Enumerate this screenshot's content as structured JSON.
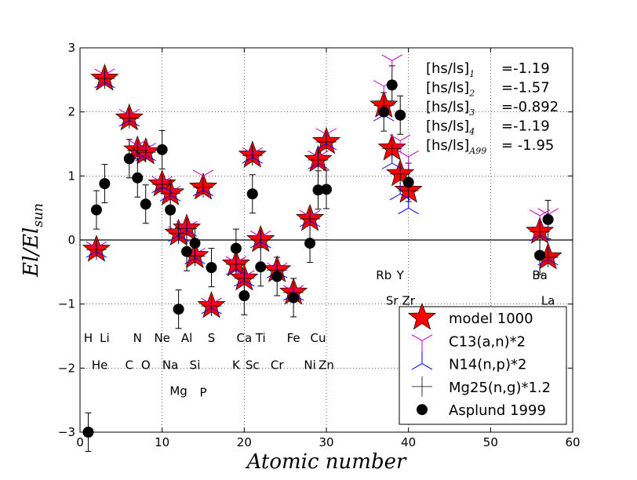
{
  "chart_data": {
    "type": "scatter",
    "xlabel": "Atomic number",
    "ylabel_main": "El/El",
    "ylabel_sub": "sun",
    "xlim": [
      0,
      60
    ],
    "ylim": [
      -3,
      3
    ],
    "xticks": [
      0,
      10,
      20,
      30,
      40,
      50,
      60
    ],
    "yticks": [
      -3,
      -2,
      -1,
      0,
      1,
      2,
      3
    ],
    "xtick_labels": [
      "0",
      "10",
      "20",
      "30",
      "40",
      "50",
      "60"
    ],
    "ytick_labels": [
      "−3",
      "−2",
      "−1",
      "0",
      "1",
      "2",
      "3"
    ],
    "grid": true,
    "hline_y": 0,
    "series": [
      {
        "name": "model 1000",
        "marker": "star",
        "color": "#ff0000",
        "points": [
          {
            "x": 2,
            "y": -0.15
          },
          {
            "x": 3,
            "y": 2.52
          },
          {
            "x": 6,
            "y": 1.9
          },
          {
            "x": 7,
            "y": 1.4
          },
          {
            "x": 8,
            "y": 1.37
          },
          {
            "x": 10,
            "y": 0.87
          },
          {
            "x": 11,
            "y": 0.73
          },
          {
            "x": 12,
            "y": 0.1
          },
          {
            "x": 13,
            "y": 0.18
          },
          {
            "x": 14,
            "y": -0.25
          },
          {
            "x": 15,
            "y": 0.82
          },
          {
            "x": 16,
            "y": -1.03
          },
          {
            "x": 19,
            "y": -0.38
          },
          {
            "x": 20,
            "y": -0.6
          },
          {
            "x": 21,
            "y": 1.32
          },
          {
            "x": 22,
            "y": 0.0
          },
          {
            "x": 24,
            "y": -0.47
          },
          {
            "x": 26,
            "y": -0.82
          },
          {
            "x": 28,
            "y": 0.33
          },
          {
            "x": 29,
            "y": 1.25
          },
          {
            "x": 30,
            "y": 1.53
          },
          {
            "x": 37,
            "y": 2.1
          },
          {
            "x": 38,
            "y": 1.43
          },
          {
            "x": 39,
            "y": 1.03
          },
          {
            "x": 40,
            "y": 0.77
          },
          {
            "x": 56,
            "y": 0.13
          },
          {
            "x": 57,
            "y": -0.27
          }
        ]
      },
      {
        "name": "C13(a,n)*2",
        "marker": "tri_down",
        "color": "#bf00bf",
        "points": [
          {
            "x": 2,
            "y": -0.12
          },
          {
            "x": 3,
            "y": 2.58
          },
          {
            "x": 6,
            "y": 1.95
          },
          {
            "x": 7,
            "y": 1.48
          },
          {
            "x": 8,
            "y": 1.42
          },
          {
            "x": 10,
            "y": 0.9
          },
          {
            "x": 11,
            "y": 0.75
          },
          {
            "x": 12,
            "y": 0.12
          },
          {
            "x": 13,
            "y": 0.2
          },
          {
            "x": 14,
            "y": -0.22
          },
          {
            "x": 15,
            "y": 1.0
          },
          {
            "x": 16,
            "y": -1.0
          },
          {
            "x": 19,
            "y": -0.35
          },
          {
            "x": 20,
            "y": -0.57
          },
          {
            "x": 21,
            "y": 1.35
          },
          {
            "x": 22,
            "y": 0.05
          },
          {
            "x": 24,
            "y": -0.45
          },
          {
            "x": 26,
            "y": -0.8
          },
          {
            "x": 28,
            "y": 0.37
          },
          {
            "x": 29,
            "y": 1.3
          },
          {
            "x": 30,
            "y": 1.65
          },
          {
            "x": 37,
            "y": 2.4
          },
          {
            "x": 38,
            "y": 2.8
          },
          {
            "x": 39,
            "y": 1.55
          },
          {
            "x": 40,
            "y": 1.3
          },
          {
            "x": 56,
            "y": 0.38
          },
          {
            "x": 57,
            "y": 0.4
          }
        ]
      },
      {
        "name": "N14(n,p)*2",
        "marker": "tri_up",
        "color": "#0000ff",
        "points": [
          {
            "x": 2,
            "y": -0.18
          },
          {
            "x": 3,
            "y": 2.47
          },
          {
            "x": 6,
            "y": 1.87
          },
          {
            "x": 7,
            "y": 1.35
          },
          {
            "x": 8,
            "y": 1.33
          },
          {
            "x": 10,
            "y": 0.83
          },
          {
            "x": 11,
            "y": 0.7
          },
          {
            "x": 12,
            "y": 0.07
          },
          {
            "x": 13,
            "y": 0.15
          },
          {
            "x": 14,
            "y": -0.28
          },
          {
            "x": 15,
            "y": 0.78
          },
          {
            "x": 16,
            "y": -1.06
          },
          {
            "x": 19,
            "y": -0.45
          },
          {
            "x": 20,
            "y": -0.63
          },
          {
            "x": 21,
            "y": 1.29
          },
          {
            "x": 22,
            "y": -0.03
          },
          {
            "x": 24,
            "y": -0.5
          },
          {
            "x": 26,
            "y": -0.85
          },
          {
            "x": 28,
            "y": 0.3
          },
          {
            "x": 29,
            "y": 1.2
          },
          {
            "x": 30,
            "y": 1.5
          },
          {
            "x": 37,
            "y": 1.95
          },
          {
            "x": 38,
            "y": 1.2
          },
          {
            "x": 39,
            "y": 0.72
          },
          {
            "x": 40,
            "y": 0.5
          },
          {
            "x": 56,
            "y": 0.08
          },
          {
            "x": 57,
            "y": -0.3
          }
        ]
      },
      {
        "name": "Mg25(n,g)*1.2",
        "marker": "plus",
        "color": "#000000",
        "points": [
          {
            "x": 2,
            "y": -0.15
          },
          {
            "x": 3,
            "y": 2.52
          },
          {
            "x": 6,
            "y": 1.9
          },
          {
            "x": 7,
            "y": 1.4
          },
          {
            "x": 8,
            "y": 1.37
          },
          {
            "x": 10,
            "y": 0.87
          },
          {
            "x": 11,
            "y": 0.73
          },
          {
            "x": 12,
            "y": 0.1
          },
          {
            "x": 13,
            "y": 0.18
          },
          {
            "x": 14,
            "y": -0.25
          },
          {
            "x": 15,
            "y": 0.82
          },
          {
            "x": 16,
            "y": -1.03
          },
          {
            "x": 19,
            "y": -0.38
          },
          {
            "x": 20,
            "y": -0.6
          },
          {
            "x": 21,
            "y": 1.32
          },
          {
            "x": 22,
            "y": 0.0
          },
          {
            "x": 24,
            "y": -0.47
          },
          {
            "x": 26,
            "y": -0.82
          },
          {
            "x": 28,
            "y": 0.33
          },
          {
            "x": 29,
            "y": 1.25
          },
          {
            "x": 30,
            "y": 1.53
          },
          {
            "x": 37,
            "y": 2.1
          },
          {
            "x": 38,
            "y": 1.43
          },
          {
            "x": 39,
            "y": 1.03
          },
          {
            "x": 40,
            "y": 0.77
          },
          {
            "x": 56,
            "y": 0.13
          },
          {
            "x": 57,
            "y": -0.27
          }
        ]
      },
      {
        "name": "Asplund 1999",
        "marker": "circle",
        "color": "#000000",
        "points": [
          {
            "x": 1,
            "y": -3.0,
            "err": 0.3
          },
          {
            "x": 2,
            "y": 0.47,
            "err": 0.3
          },
          {
            "x": 3,
            "y": 0.88,
            "err": 0.3
          },
          {
            "x": 6,
            "y": 1.27,
            "err": 0.3
          },
          {
            "x": 7,
            "y": 0.97,
            "err": 0.3
          },
          {
            "x": 8,
            "y": 0.56,
            "err": 0.3
          },
          {
            "x": 10,
            "y": 1.41,
            "err": 0.3
          },
          {
            "x": 11,
            "y": 0.47,
            "err": 0.3
          },
          {
            "x": 12,
            "y": -1.08,
            "err": 0.3
          },
          {
            "x": 13,
            "y": -0.18,
            "err": 0.3
          },
          {
            "x": 14,
            "y": -0.05,
            "err": 0.3
          },
          {
            "x": 16,
            "y": -0.43,
            "err": 0.3
          },
          {
            "x": 19,
            "y": -0.13,
            "err": 0.3
          },
          {
            "x": 20,
            "y": -0.87,
            "err": 0.3
          },
          {
            "x": 21,
            "y": 0.72,
            "err": 0.3
          },
          {
            "x": 22,
            "y": -0.42,
            "err": 0.3
          },
          {
            "x": 24,
            "y": -0.57,
            "err": 0.3
          },
          {
            "x": 26,
            "y": -0.9,
            "err": 0.3
          },
          {
            "x": 28,
            "y": -0.05,
            "err": 0.3
          },
          {
            "x": 29,
            "y": 0.78,
            "err": 0.3
          },
          {
            "x": 30,
            "y": 0.79,
            "err": 0.3
          },
          {
            "x": 37,
            "y": 2.0,
            "err": 0.3
          },
          {
            "x": 38,
            "y": 2.42,
            "err": 0.3
          },
          {
            "x": 39,
            "y": 1.95,
            "err": 0.3
          },
          {
            "x": 40,
            "y": 0.9,
            "err": 0.3
          },
          {
            "x": 56,
            "y": -0.24,
            "err": 0.3
          },
          {
            "x": 57,
            "y": 0.32,
            "err": 0.3
          }
        ]
      }
    ],
    "element_labels": [
      {
        "text": "H",
        "x": 1,
        "y": -1.53
      },
      {
        "text": "He",
        "x": 2.4,
        "y": -1.95
      },
      {
        "text": "Li",
        "x": 3,
        "y": -1.53
      },
      {
        "text": "C",
        "x": 6,
        "y": -1.95
      },
      {
        "text": "N",
        "x": 7,
        "y": -1.53
      },
      {
        "text": "O",
        "x": 8,
        "y": -1.95
      },
      {
        "text": "Ne",
        "x": 10,
        "y": -1.53
      },
      {
        "text": "Na",
        "x": 11,
        "y": -1.95
      },
      {
        "text": "Mg",
        "x": 12,
        "y": -2.36
      },
      {
        "text": "Al",
        "x": 13,
        "y": -1.53
      },
      {
        "text": "Si",
        "x": 14,
        "y": -1.95
      },
      {
        "text": "P",
        "x": 15,
        "y": -2.38
      },
      {
        "text": "S",
        "x": 16,
        "y": -1.53
      },
      {
        "text": "K",
        "x": 19,
        "y": -1.95
      },
      {
        "text": "Ca",
        "x": 20,
        "y": -1.53
      },
      {
        "text": "Sc",
        "x": 21,
        "y": -1.95
      },
      {
        "text": "Ti",
        "x": 22,
        "y": -1.53
      },
      {
        "text": "Cr",
        "x": 24,
        "y": -1.95
      },
      {
        "text": "Fe",
        "x": 26,
        "y": -1.53
      },
      {
        "text": "Ni",
        "x": 28,
        "y": -1.95
      },
      {
        "text": "Cu",
        "x": 29,
        "y": -1.53
      },
      {
        "text": "Zn",
        "x": 30,
        "y": -1.95
      },
      {
        "text": "Rb",
        "x": 37,
        "y": -0.55
      },
      {
        "text": "Y",
        "x": 39,
        "y": -0.55
      },
      {
        "text": "Sr",
        "x": 38,
        "y": -0.95
      },
      {
        "text": "Zr",
        "x": 40,
        "y": -0.95
      },
      {
        "text": "Ba",
        "x": 56,
        "y": -0.55
      },
      {
        "text": "La",
        "x": 57,
        "y": -0.95
      }
    ],
    "annotations": [
      {
        "base": "[hs/ls]",
        "sub": "1",
        "value": "=-1.19"
      },
      {
        "base": "[hs/ls]",
        "sub": "2",
        "value": "=-1.57"
      },
      {
        "base": "[hs/ls]",
        "sub": "3",
        "value": "=-0.892"
      },
      {
        "base": "[hs/ls]",
        "sub": "4",
        "value": "=-1.19"
      },
      {
        "base": "[hs/ls]",
        "sub": "A99",
        "value": "= -1.95"
      }
    ],
    "legend_location": "lower-right"
  }
}
